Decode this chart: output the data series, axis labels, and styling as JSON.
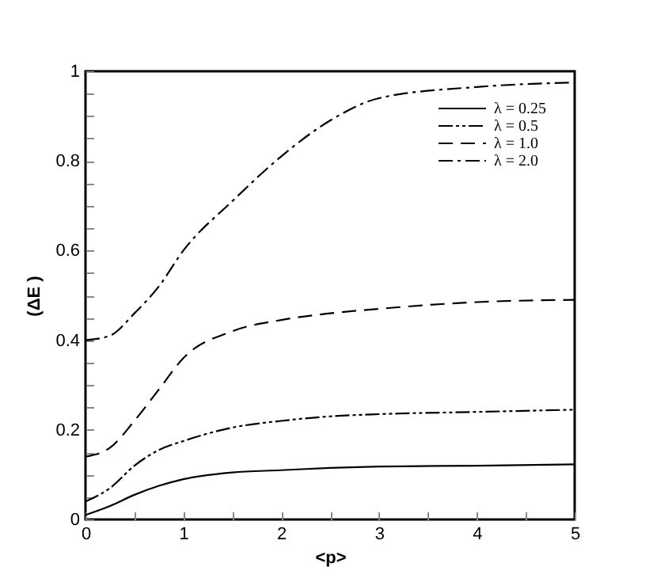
{
  "chart_data": {
    "type": "line",
    "xlabel": "<p>",
    "ylabel": "(ΔE )",
    "x": [
      0,
      0.25,
      0.5,
      0.75,
      1,
      1.5,
      2,
      2.5,
      3,
      4,
      5
    ],
    "series": [
      {
        "name": "λ = 0.25",
        "color": "#000000",
        "line_style": "solid",
        "values": [
          0.01,
          0.03,
          0.055,
          0.075,
          0.09,
          0.105,
          0.11,
          0.115,
          0.118,
          0.12,
          0.123
        ]
      },
      {
        "name": "λ = 0.5",
        "color": "#000000",
        "line_style": "dashdotdot",
        "values": [
          0.04,
          0.07,
          0.12,
          0.155,
          0.175,
          0.205,
          0.22,
          0.23,
          0.235,
          0.24,
          0.245
        ]
      },
      {
        "name": "λ = 1.0",
        "color": "#000000",
        "line_style": "dashed",
        "values": [
          0.14,
          0.16,
          0.22,
          0.29,
          0.36,
          0.42,
          0.445,
          0.46,
          0.47,
          0.485,
          0.49
        ]
      },
      {
        "name": "λ = 2.0",
        "color": "#000000",
        "line_style": "dashdot",
        "values": [
          0.4,
          0.41,
          0.46,
          0.52,
          0.6,
          0.71,
          0.81,
          0.89,
          0.94,
          0.965,
          0.975
        ]
      }
    ],
    "xlim": [
      0,
      5
    ],
    "ylim": [
      0,
      1
    ],
    "xticks": [
      0,
      {
        "value": 0.5,
        "label": null
      },
      1,
      {
        "value": 1.5,
        "label": null
      },
      2,
      {
        "value": 2.5,
        "label": null
      },
      3,
      {
        "value": 3.5,
        "label": null
      },
      4,
      {
        "value": 4.5,
        "label": null
      },
      5
    ],
    "yticks": [
      0,
      {
        "value": 0.05,
        "label": null
      },
      {
        "value": 0.1,
        "label": null
      },
      {
        "value": 0.15,
        "label": null
      },
      0.2,
      {
        "value": 0.25,
        "label": null
      },
      {
        "value": 0.3,
        "label": null
      },
      {
        "value": 0.35,
        "label": null
      },
      0.4,
      {
        "value": 0.45,
        "label": null
      },
      {
        "value": 0.5,
        "label": null
      },
      {
        "value": 0.55,
        "label": null
      },
      0.6,
      {
        "value": 0.65,
        "label": null
      },
      {
        "value": 0.7,
        "label": null
      },
      {
        "value": 0.75,
        "label": null
      },
      0.8,
      {
        "value": 0.85,
        "label": null
      },
      {
        "value": 0.9,
        "label": null
      },
      {
        "value": 0.95,
        "label": null
      },
      1
    ],
    "grid": false,
    "legend": "top right",
    "marker": "none"
  }
}
